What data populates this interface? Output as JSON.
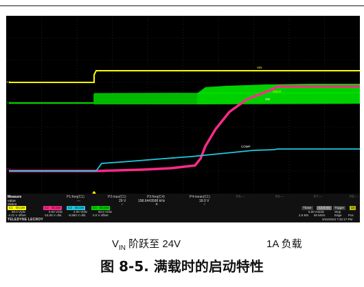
{
  "oscilloscope": {
    "trace_labels": {
      "vin": "VIN",
      "vout": "VOUT",
      "sw": "SW",
      "comp": "COMP"
    },
    "channel_markers": [
      "C1",
      "C2",
      "C3",
      "C4"
    ],
    "trace_colors": {
      "vin": "#ffff00",
      "sw": "#00d400",
      "vout": "#ff2a8a",
      "comp": "#1ecbe1"
    },
    "measure": {
      "header": "Measure",
      "row_labels": [
        "value",
        "status"
      ],
      "params": [
        {
          "name": "P1:freq(C1)",
          "value": "---",
          "status": ""
        },
        {
          "name": "P2:max(C1)",
          "value": "29 V",
          "status": "✓"
        },
        {
          "name": "P3:freq(C4)",
          "value": "198.6443598 kHz",
          "status": "✕"
        },
        {
          "name": "P4:mean(C1)",
          "value": "18.0 V",
          "status": "✓"
        },
        {
          "name": "P5:---",
          "value": "",
          "status": ""
        },
        {
          "name": "P6:---",
          "value": "",
          "status": ""
        },
        {
          "name": "P7:---",
          "value": "",
          "status": ""
        },
        {
          "name": "P8:---",
          "value": "",
          "status": ""
        }
      ]
    },
    "channels": [
      {
        "id": "C1",
        "tag": "DC1M",
        "scale": "50.0 V/div",
        "offset": "-4.21 V offset",
        "color": "#ffff00"
      },
      {
        "id": "C2",
        "tag": "DC1M",
        "scale": "5.00 V/div",
        "offset": "-15.05 V ofst",
        "color": "#ff2a8a"
      },
      {
        "id": "C3",
        "tag": "DC1M",
        "scale": "2.00 V/div",
        "offset": "-5.950 V ofst",
        "color": "#1ecbe1"
      },
      {
        "id": "C4",
        "tag": "DC1M",
        "scale": "50.0 V/div",
        "offset": "0.0 V offset",
        "color": "#00d400"
      }
    ],
    "brand": "TELEDYNE LECROY",
    "timebase": {
      "label": "Tbase",
      "value": "-13.5 ms",
      "scale": "5.00 ms/div",
      "rate": "2.5 MS",
      "rate2": "50 MS/s"
    },
    "trigger": {
      "label": "Trigger",
      "mode": "Stop",
      "source": "Edge",
      "slope": "Pos",
      "level": "14"
    },
    "timestamp": "3/15/2023 7:32:17 PM"
  },
  "caption": {
    "left_main": "V",
    "left_sub": "IN",
    "left_rest": " 阶跃至 24V",
    "right": "1A 负载"
  },
  "figure_title": "图 8-5. 满载时的启动特性"
}
